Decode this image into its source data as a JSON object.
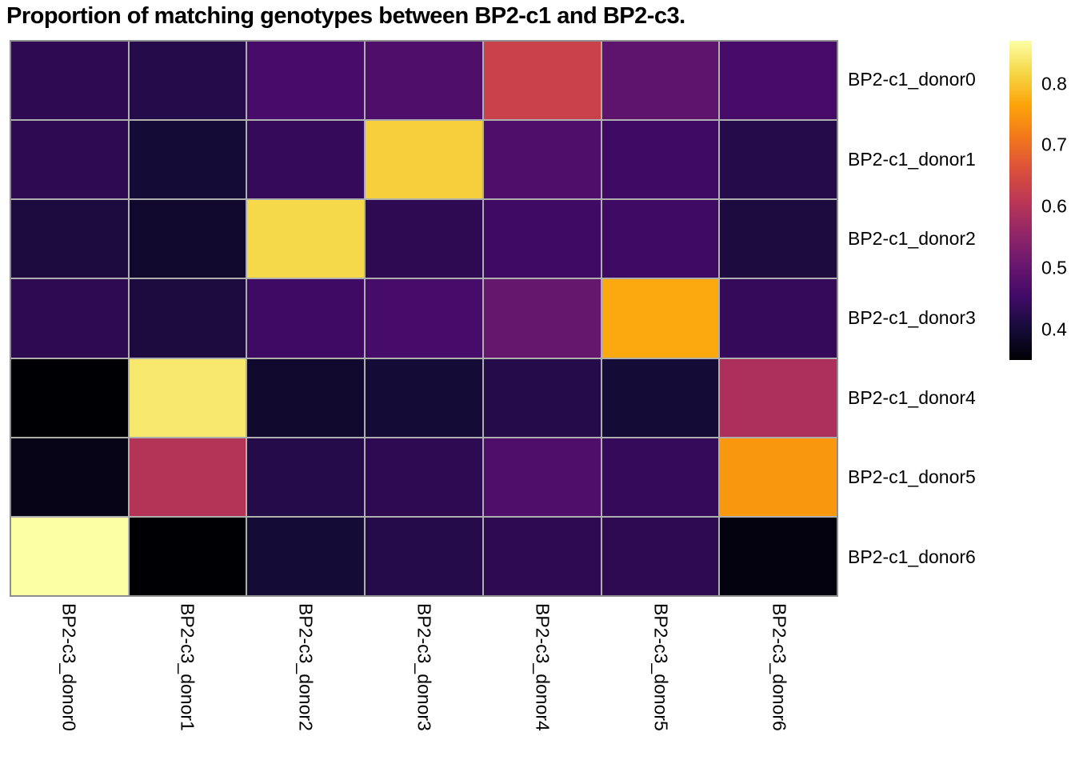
{
  "title": "Proportion of matching genotypes between BP2-c1 and BP2-c3.",
  "chart_data": {
    "type": "heatmap",
    "title": "Proportion of matching genotypes between BP2-c1 and BP2-c3.",
    "rows": [
      "BP2-c1_donor0",
      "BP2-c1_donor1",
      "BP2-c1_donor2",
      "BP2-c1_donor3",
      "BP2-c1_donor4",
      "BP2-c1_donor5",
      "BP2-c1_donor6"
    ],
    "columns": [
      "BP2-c3_donor0",
      "BP2-c3_donor1",
      "BP2-c3_donor2",
      "BP2-c3_donor3",
      "BP2-c3_donor4",
      "BP2-c3_donor5",
      "BP2-c3_donor6"
    ],
    "values": [
      [
        0.43,
        0.42,
        0.46,
        0.47,
        0.63,
        0.49,
        0.46
      ],
      [
        0.43,
        0.4,
        0.44,
        0.81,
        0.47,
        0.45,
        0.42
      ],
      [
        0.41,
        0.39,
        0.82,
        0.43,
        0.45,
        0.45,
        0.41
      ],
      [
        0.43,
        0.41,
        0.45,
        0.46,
        0.5,
        0.77,
        0.44
      ],
      [
        0.35,
        0.84,
        0.39,
        0.4,
        0.42,
        0.4,
        0.59
      ],
      [
        0.37,
        0.6,
        0.42,
        0.43,
        0.47,
        0.44,
        0.75
      ],
      [
        0.87,
        0.35,
        0.4,
        0.42,
        0.43,
        0.43,
        0.36
      ]
    ],
    "colormap": "inferno",
    "zlim": [
      0.35,
      0.87
    ],
    "colorbar_ticks": [
      0.4,
      0.5,
      0.6,
      0.7,
      0.8
    ],
    "colorbar_tick_labels": [
      "0.4",
      "0.5",
      "0.6",
      "0.7",
      "0.8"
    ],
    "legend_position": "right",
    "grid_on": true,
    "grid_color": "#aeaeae",
    "border_color": "#8f8f8f",
    "title_color": "#000000"
  }
}
